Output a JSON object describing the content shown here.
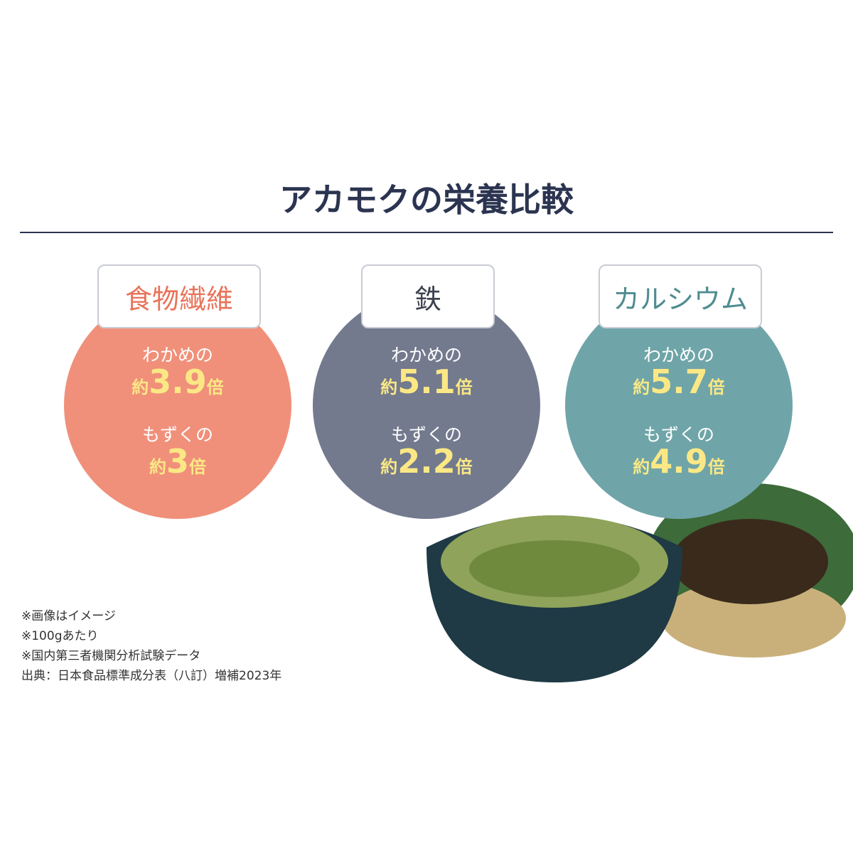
{
  "title": "アカモクの栄養比較",
  "approx": "約",
  "times": "倍",
  "cards": [
    {
      "label": "食物繊維",
      "items": [
        {
          "compare": "わかめの",
          "value": 3.9
        },
        {
          "compare": "もずくの",
          "value": 3
        }
      ]
    },
    {
      "label": "鉄",
      "items": [
        {
          "compare": "わかめの",
          "value": 5.1
        },
        {
          "compare": "もずくの",
          "value": 2.2
        }
      ]
    },
    {
      "label": "カルシウム",
      "items": [
        {
          "compare": "わかめの",
          "value": 5.7
        },
        {
          "compare": "もずくの",
          "value": 4.9
        }
      ]
    }
  ],
  "notes": [
    "※画像はイメージ",
    "※100gあたり",
    "※国内第三者機関分析試験データ",
    "出典：日本食品標準成分表（八訂）増補2023年"
  ]
}
